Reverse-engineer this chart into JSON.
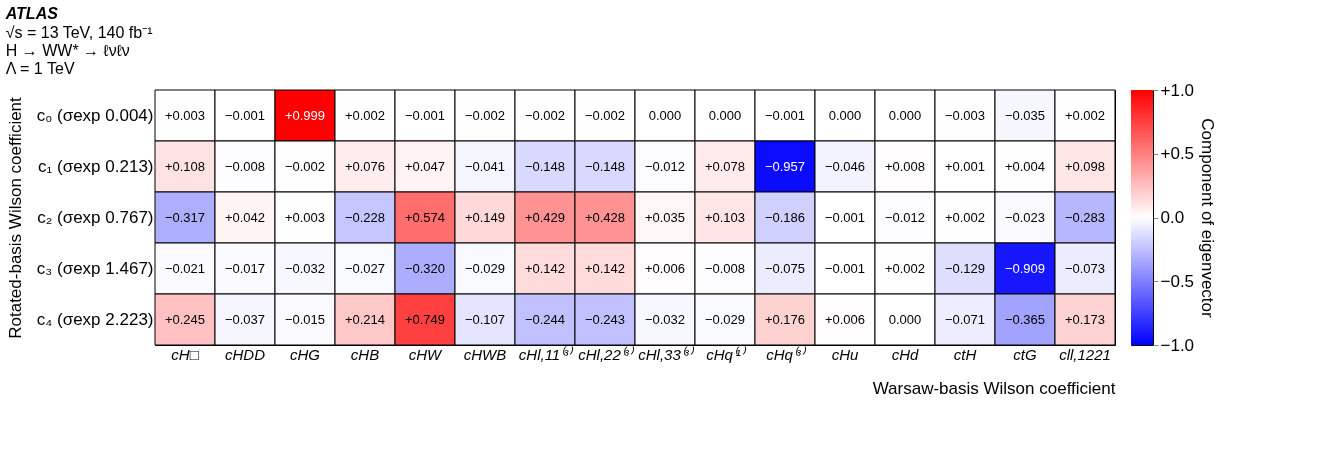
{
  "chart_data": {
    "type": "heatmap",
    "title": "ATLAS",
    "annotations": [
      "√s = 13 TeV, 140 fb⁻¹",
      "H → WW* → ℓνℓν",
      "Λ = 1 TeV"
    ],
    "xlabel": "Warsaw-basis Wilson coefficient",
    "ylabel": "Rotated-basis Wilson coefficient",
    "clabel": "Component of eigenvector",
    "categories": [
      "cH□",
      "cHDD",
      "cHG",
      "cHB",
      "cHW",
      "cHWB",
      "cHl,11⁽³⁾",
      "cHl,22⁽³⁾",
      "cHl,33⁽³⁾",
      "cHq⁽¹⁾",
      "cHq⁽³⁾",
      "cHu",
      "cHd",
      "ctH",
      "ctG",
      "cll,1221"
    ],
    "y_categories": [
      "c₀ (σexp 0.004)",
      "c₁ (σexp 0.213)",
      "c₂ (σexp 0.767)",
      "c₃ (σexp 1.467)",
      "c₄ (σexp 2.223)"
    ],
    "cells": [
      [
        0.003,
        -0.001,
        0.999,
        0.002,
        -0.001,
        -0.002,
        -0.002,
        -0.002,
        0.0,
        0.0,
        -0.001,
        0.0,
        0.0,
        -0.003,
        -0.035,
        0.002
      ],
      [
        0.108,
        -0.008,
        -0.002,
        0.076,
        0.047,
        -0.041,
        -0.148,
        -0.148,
        -0.012,
        0.078,
        -0.957,
        -0.046,
        0.008,
        0.001,
        0.004,
        0.098
      ],
      [
        -0.317,
        0.042,
        0.003,
        -0.228,
        0.574,
        0.149,
        0.429,
        0.428,
        0.035,
        0.103,
        -0.186,
        -0.001,
        -0.012,
        0.002,
        -0.023,
        -0.283
      ],
      [
        -0.021,
        -0.017,
        -0.032,
        -0.027,
        -0.32,
        -0.029,
        0.142,
        0.142,
        0.006,
        -0.008,
        -0.075,
        -0.001,
        0.002,
        -0.129,
        -0.909,
        -0.073
      ],
      [
        0.245,
        -0.037,
        -0.015,
        0.214,
        0.749,
        -0.107,
        -0.244,
        -0.243,
        -0.032,
        -0.029,
        0.176,
        0.006,
        0.0,
        -0.071,
        -0.365,
        0.173
      ]
    ],
    "cell_labels": [
      [
        "+0.003",
        "−0.001",
        "+0.999",
        "+0.002",
        "−0.001",
        "−0.002",
        "−0.002",
        "−0.002",
        "0.000",
        "0.000",
        "−0.001",
        "0.000",
        "0.000",
        "−0.003",
        "−0.035",
        "+0.002"
      ],
      [
        "+0.108",
        "−0.008",
        "−0.002",
        "+0.076",
        "+0.047",
        "−0.041",
        "−0.148",
        "−0.148",
        "−0.012",
        "+0.078",
        "−0.957",
        "−0.046",
        "+0.008",
        "+0.001",
        "+0.004",
        "+0.098"
      ],
      [
        "−0.317",
        "+0.042",
        "+0.003",
        "−0.228",
        "+0.574",
        "+0.149",
        "+0.429",
        "+0.428",
        "+0.035",
        "+0.103",
        "−0.186",
        "−0.001",
        "−0.012",
        "+0.002",
        "−0.023",
        "−0.283"
      ],
      [
        "−0.021",
        "−0.017",
        "−0.032",
        "−0.027",
        "−0.320",
        "−0.029",
        "+0.142",
        "+0.142",
        "+0.006",
        "−0.008",
        "−0.075",
        "−0.001",
        "+0.002",
        "−0.129",
        "−0.909",
        "−0.073"
      ],
      [
        "+0.245",
        "−0.037",
        "−0.015",
        "+0.214",
        "+0.749",
        "−0.107",
        "−0.244",
        "−0.243",
        "−0.032",
        "−0.029",
        "+0.176",
        "+0.006",
        "0.000",
        "−0.071",
        "−0.365",
        "+0.173"
      ]
    ],
    "clim": [
      -1.0,
      1.0
    ],
    "cticks": [
      {
        "value": 1.0,
        "label": "+1.0"
      },
      {
        "value": 0.5,
        "label": "+0.5"
      },
      {
        "value": 0.0,
        "label": "0.0"
      },
      {
        "value": -0.5,
        "label": "−0.5"
      },
      {
        "value": -1.0,
        "label": "−1.0"
      }
    ],
    "colors": [
      "#0000ff",
      "#ffffff",
      "#ff0000"
    ]
  }
}
